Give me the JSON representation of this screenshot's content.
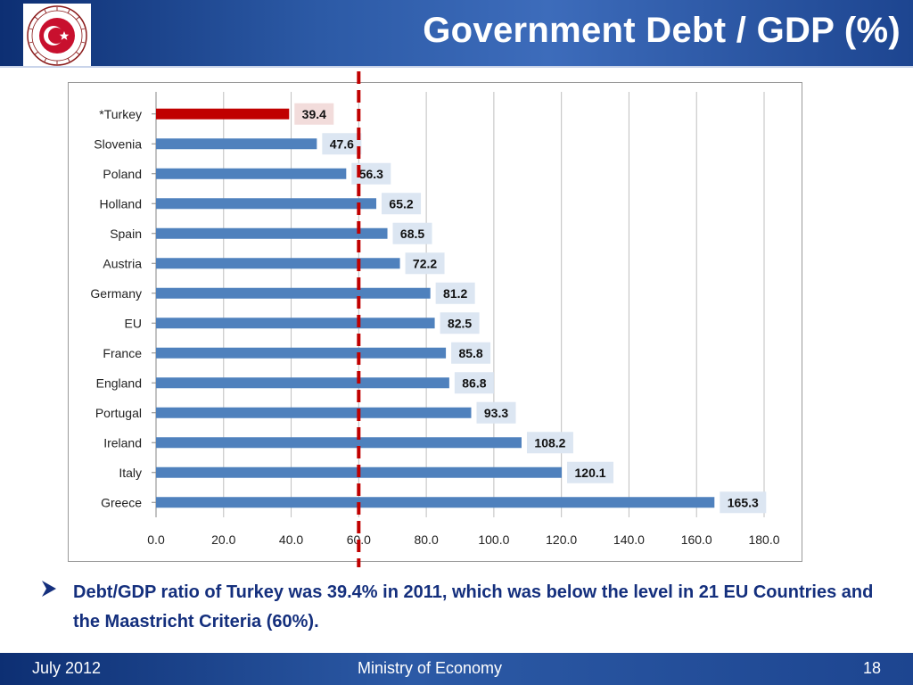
{
  "header": {
    "title": "Government Debt / GDP (%)",
    "logo_ring_text": "REPUBLIC OF TURKEY · MINISTRY OF ECONOMY"
  },
  "chart_data": {
    "type": "bar",
    "orientation": "horizontal",
    "categories": [
      "*Turkey",
      "Slovenia",
      "Poland",
      "Holland",
      "Spain",
      "Austria",
      "Germany",
      "EU",
      "France",
      "England",
      "Portugal",
      "Ireland",
      "Italy",
      "Greece"
    ],
    "values": [
      39.4,
      47.6,
      56.3,
      65.2,
      68.5,
      72.2,
      81.2,
      82.5,
      85.8,
      86.8,
      93.3,
      108.2,
      120.1,
      165.3
    ],
    "value_labels": [
      "39.4",
      "47.6",
      "56.3",
      "65.2",
      "68.5",
      "72.2",
      "81.2",
      "82.5",
      "85.8",
      "86.8",
      "93.3",
      "108.2",
      "120.1",
      "165.3"
    ],
    "xlim": [
      0,
      180
    ],
    "ticks": [
      0,
      20,
      40,
      60,
      80,
      100,
      120,
      140,
      160,
      180
    ],
    "tick_labels": [
      "0.0",
      "20.0",
      "40.0",
      "60.0",
      "80.0",
      "100.0",
      "120.0",
      "140.0",
      "160.0",
      "180.0"
    ],
    "reference_line": 60,
    "grid": "vertical",
    "colors": {
      "bar": "#4f81bd",
      "highlight_bar": "#c00000",
      "label_bg": "#dce6f2",
      "highlight_label_bg": "#f2dcdb",
      "reference_line": "#c00000"
    }
  },
  "bullet": {
    "text": "Debt/GDP ratio of Turkey was 39.4% in 2011, which was below the level in 21 EU Countries and the Maastricht Criteria (60%)."
  },
  "footer": {
    "date": "July 2012",
    "center": "Ministry of Economy",
    "page": "18"
  }
}
